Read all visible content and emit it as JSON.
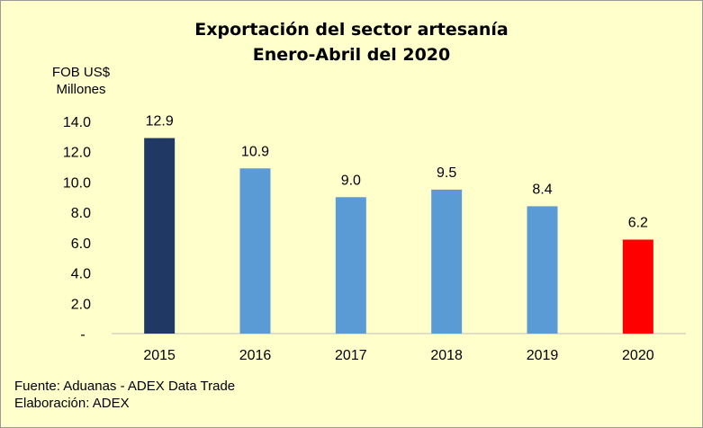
{
  "chart_data": {
    "type": "bar",
    "title": "Exportación del sector artesanía",
    "subtitle": "Enero-Abril del 2020",
    "ylabel": "FOB US$",
    "ylabel_unit": "Millones",
    "categories": [
      "2015",
      "2016",
      "2017",
      "2018",
      "2019",
      "2020"
    ],
    "values": [
      12.9,
      10.9,
      9.0,
      9.5,
      8.4,
      6.2
    ],
    "value_labels": [
      "12.9",
      "10.9",
      "9.0",
      "9.5",
      "8.4",
      "6.2"
    ],
    "bar_colors": [
      "#1F3864",
      "#5B9BD5",
      "#5B9BD5",
      "#5B9BD5",
      "#5B9BD5",
      "#FF0000"
    ],
    "y_ticks": [
      0,
      2,
      4,
      6,
      8,
      10,
      12,
      14
    ],
    "y_tick_labels": [
      "-",
      "2.0",
      "4.0",
      "6.0",
      "8.0",
      "10.0",
      "12.0",
      "14.0"
    ],
    "ylim": [
      0,
      14
    ],
    "grid": false,
    "legend": "none"
  },
  "footer": {
    "source": "Fuente: Aduanas - ADEX Data Trade",
    "credit": "Elaboración: ADEX"
  },
  "colors": {
    "background": "#FFFFCC",
    "axis": "#BFBFBF"
  }
}
